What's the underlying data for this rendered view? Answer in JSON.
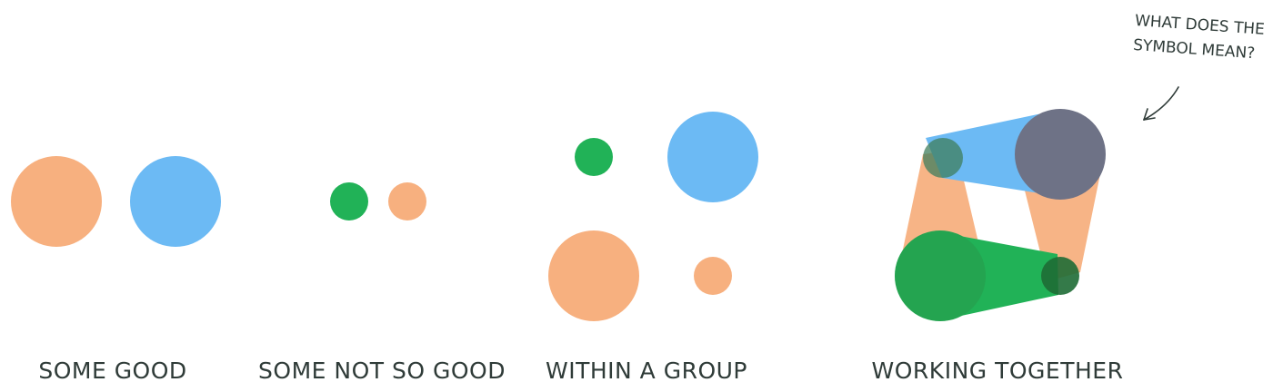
{
  "captions": {
    "some_good": "SOME GOOD",
    "some_not_so_good": "SOME NOT SO GOOD",
    "within_a_group": "WITHIN A GROUP",
    "working_together": "WORKING TOGETHER"
  },
  "annotation": {
    "line1": "WHAT DOES THE",
    "line2": "SYMBOL MEAN?"
  },
  "colors": {
    "orange": "#f7b07f",
    "blue": "#6cbaf4",
    "green": "#21b257",
    "dark_green": "#2a8a45",
    "slate": "#6e7286",
    "ink": "#2f3b38"
  }
}
